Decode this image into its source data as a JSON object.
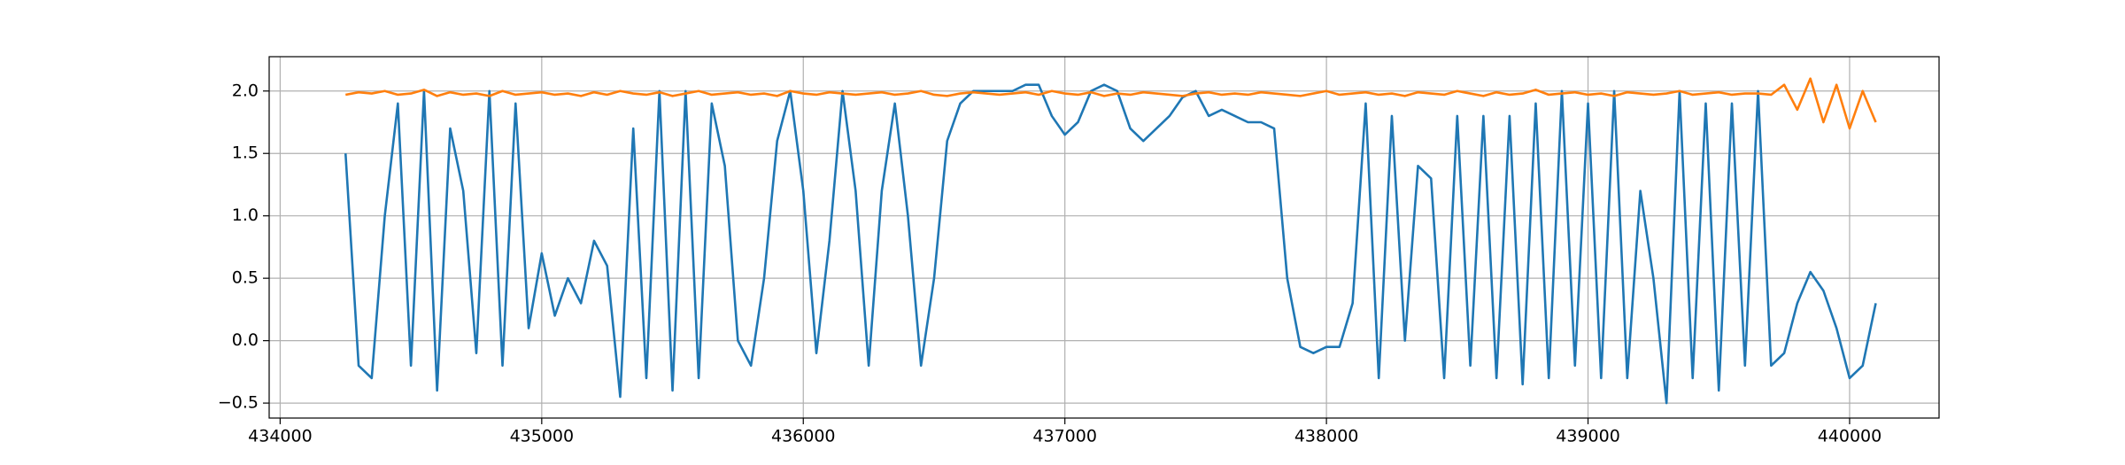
{
  "chart_data": {
    "type": "line",
    "x": [
      434250,
      434300,
      434350,
      434400,
      434450,
      434500,
      434550,
      434600,
      434650,
      434700,
      434750,
      434800,
      434850,
      434900,
      434950,
      435000,
      435050,
      435100,
      435150,
      435200,
      435250,
      435300,
      435350,
      435400,
      435450,
      435500,
      435550,
      435600,
      435650,
      435700,
      435750,
      435800,
      435850,
      435900,
      435950,
      436000,
      436050,
      436100,
      436150,
      436200,
      436250,
      436300,
      436350,
      436400,
      436450,
      436500,
      436550,
      436600,
      436650,
      436700,
      436750,
      436800,
      436850,
      436900,
      436950,
      437000,
      437050,
      437100,
      437150,
      437200,
      437250,
      437300,
      437350,
      437400,
      437450,
      437500,
      437550,
      437600,
      437650,
      437700,
      437750,
      437800,
      437850,
      437900,
      437950,
      438000,
      438050,
      438100,
      438150,
      438200,
      438250,
      438300,
      438350,
      438400,
      438450,
      438500,
      438550,
      438600,
      438650,
      438700,
      438750,
      438800,
      438850,
      438900,
      438950,
      439000,
      439050,
      439100,
      439150,
      439200,
      439250,
      439300,
      439350,
      439400,
      439450,
      439500,
      439550,
      439600,
      439650,
      439700,
      439750,
      439800,
      439850,
      439900,
      439950,
      440000,
      440050,
      440100
    ],
    "series": [
      {
        "color": "#1f77b4",
        "values": [
          1.5,
          -0.2,
          -0.3,
          1.0,
          1.9,
          -0.2,
          2.0,
          -0.4,
          1.7,
          1.2,
          -0.1,
          2.0,
          -0.2,
          1.9,
          0.1,
          0.7,
          0.2,
          0.5,
          0.3,
          0.8,
          0.6,
          -0.45,
          1.7,
          -0.3,
          2.0,
          -0.4,
          2.0,
          -0.3,
          1.9,
          1.4,
          0.0,
          -0.2,
          0.5,
          1.6,
          2.0,
          1.2,
          -0.1,
          0.8,
          2.0,
          1.2,
          -0.2,
          1.2,
          1.9,
          1.0,
          -0.2,
          0.5,
          1.6,
          1.9,
          2.0,
          2.0,
          2.0,
          2.0,
          2.05,
          2.05,
          1.8,
          1.65,
          1.75,
          2.0,
          2.05,
          2.0,
          1.7,
          1.6,
          1.7,
          1.8,
          1.95,
          2.0,
          1.8,
          1.85,
          1.8,
          1.75,
          1.75,
          1.7,
          0.5,
          -0.05,
          -0.1,
          -0.05,
          -0.05,
          0.3,
          1.9,
          -0.3,
          1.8,
          0.0,
          1.4,
          1.3,
          -0.3,
          1.8,
          -0.2,
          1.8,
          -0.3,
          1.8,
          -0.35,
          1.9,
          -0.3,
          2.0,
          -0.2,
          1.9,
          -0.3,
          2.0,
          -0.3,
          1.2,
          0.5,
          -0.5,
          2.0,
          -0.3,
          1.9,
          -0.4,
          1.9,
          -0.2,
          2.0,
          -0.2,
          -0.1,
          0.3,
          0.55,
          0.4,
          0.1,
          -0.3,
          -0.2,
          0.3
        ]
      },
      {
        "color": "#ff7f0e",
        "values": [
          1.97,
          1.99,
          1.98,
          2.0,
          1.97,
          1.98,
          2.01,
          1.96,
          1.99,
          1.97,
          1.98,
          1.96,
          2.0,
          1.97,
          1.98,
          1.99,
          1.97,
          1.98,
          1.96,
          1.99,
          1.97,
          2.0,
          1.98,
          1.97,
          1.99,
          1.96,
          1.98,
          2.0,
          1.97,
          1.98,
          1.99,
          1.97,
          1.98,
          1.96,
          2.0,
          1.98,
          1.97,
          1.99,
          1.98,
          1.97,
          1.98,
          1.99,
          1.97,
          1.98,
          2.0,
          1.97,
          1.96,
          1.98,
          1.99,
          1.98,
          1.97,
          1.98,
          1.99,
          1.97,
          2.0,
          1.98,
          1.97,
          1.99,
          1.96,
          1.98,
          1.97,
          1.99,
          1.98,
          1.97,
          1.96,
          1.98,
          1.99,
          1.97,
          1.98,
          1.97,
          1.99,
          1.98,
          1.97,
          1.96,
          1.98,
          2.0,
          1.97,
          1.98,
          1.99,
          1.97,
          1.98,
          1.96,
          1.99,
          1.98,
          1.97,
          2.0,
          1.98,
          1.96,
          1.99,
          1.97,
          1.98,
          2.01,
          1.97,
          1.98,
          1.99,
          1.97,
          1.98,
          1.96,
          1.99,
          1.98,
          1.97,
          1.98,
          2.0,
          1.97,
          1.98,
          1.99,
          1.97,
          1.98,
          1.98,
          1.97,
          2.05,
          1.85,
          2.1,
          1.75,
          2.05,
          1.7,
          2.0,
          1.75
        ]
      }
    ],
    "xlim": [
      433958,
      440342
    ],
    "ylim": [
      -0.62,
      2.275
    ],
    "xticks": [
      434000,
      435000,
      436000,
      437000,
      438000,
      439000,
      440000
    ],
    "yticks": [
      {
        "value": -0.5,
        "label": "−0.5"
      },
      {
        "value": 0.0,
        "label": "0.0"
      },
      0.5,
      {
        "value": 1.0,
        "label": "1.0"
      },
      1.5,
      {
        "value": 2.0,
        "label": "2.0"
      }
    ],
    "grid": true
  }
}
